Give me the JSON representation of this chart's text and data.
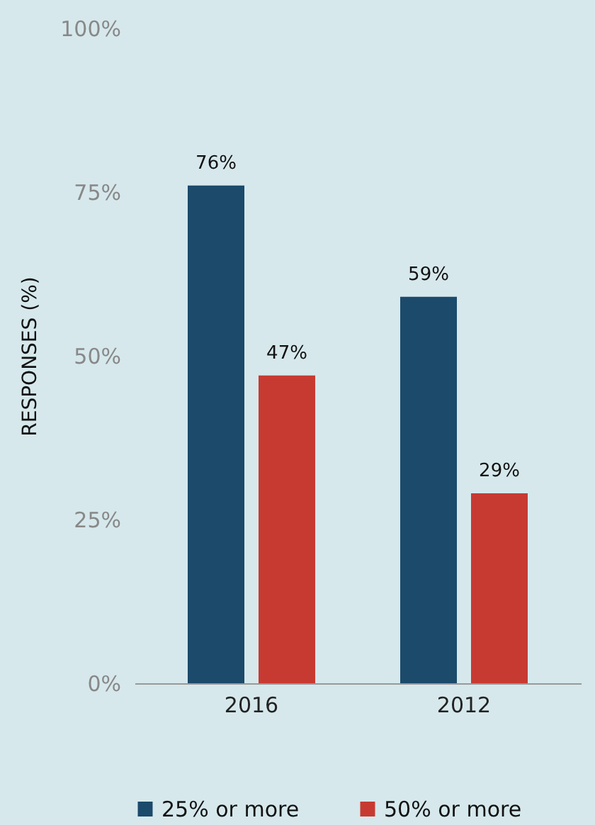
{
  "chart_data": {
    "type": "bar",
    "ylabel": "RESPONSES (%)",
    "categories": [
      "2016",
      "2012"
    ],
    "series": [
      {
        "name": "25% or more",
        "color": "#1b4a6b",
        "values": [
          76,
          59
        ],
        "value_labels": [
          "76%",
          "59%"
        ]
      },
      {
        "name": "50% or more",
        "color": "#c73a32",
        "values": [
          47,
          29
        ],
        "value_labels": [
          "47%",
          "29%"
        ]
      }
    ],
    "ylim": [
      0,
      100
    ],
    "yticks": [
      {
        "value": 0,
        "label": "0%"
      },
      {
        "value": 25,
        "label": "25%"
      },
      {
        "value": 50,
        "label": "50%"
      },
      {
        "value": 75,
        "label": "75%"
      },
      {
        "value": 100,
        "label": "100%"
      }
    ],
    "grid": false,
    "legend": "bottom"
  }
}
